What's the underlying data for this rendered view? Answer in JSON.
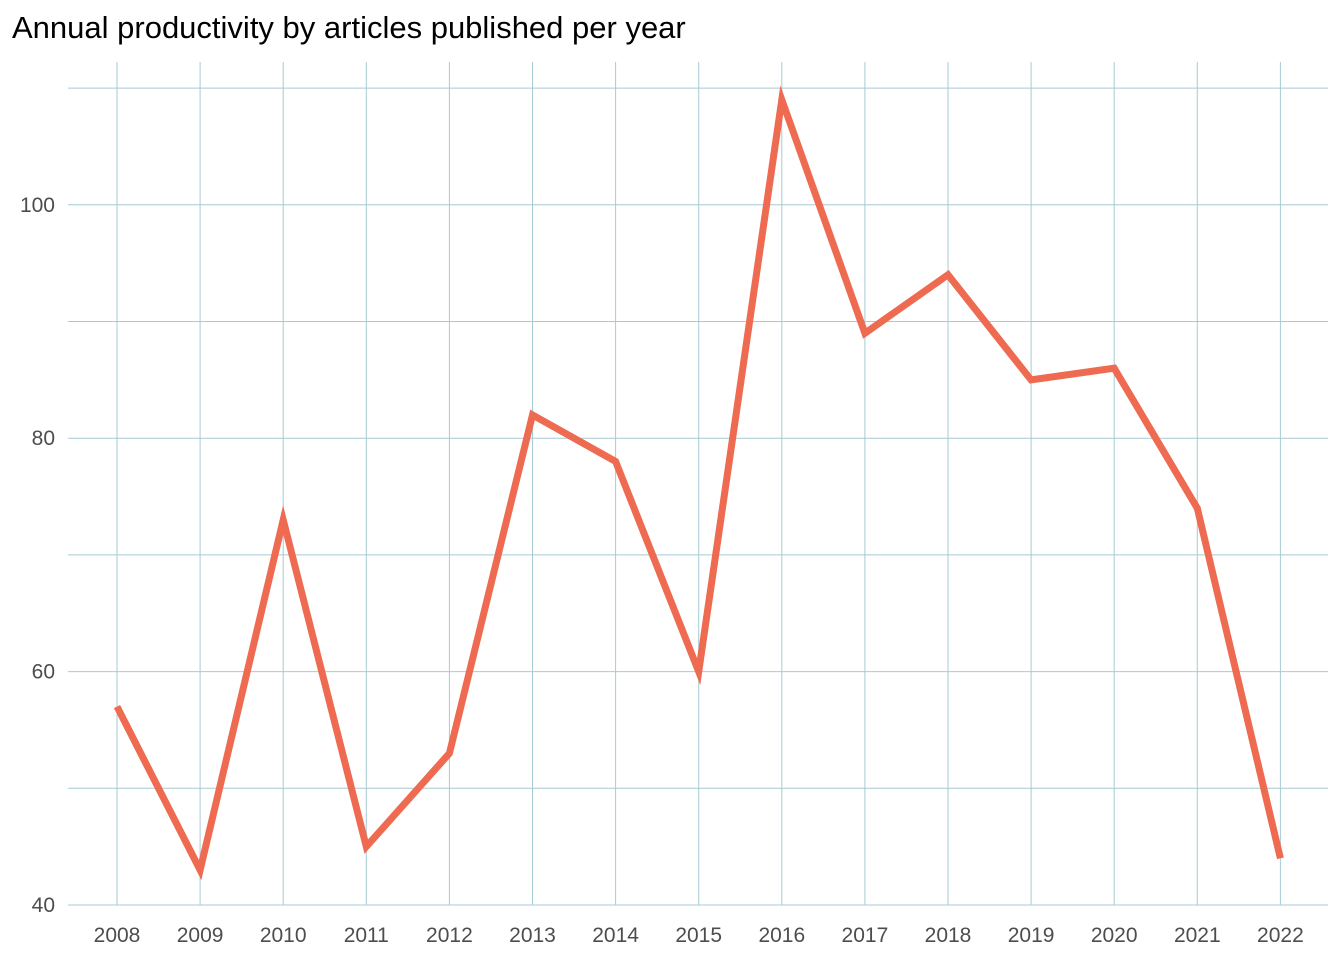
{
  "chart_data": {
    "type": "line",
    "title": "Annual productivity by articles published per year",
    "xlabel": "",
    "ylabel": "",
    "x": [
      "2008",
      "2009",
      "2010",
      "2011",
      "2012",
      "2013",
      "2014",
      "2015",
      "2016",
      "2017",
      "2018",
      "2019",
      "2020",
      "2021",
      "2022"
    ],
    "series": [
      {
        "values": [
          57,
          43,
          73,
          45,
          53,
          82,
          78,
          60,
          109,
          89,
          94,
          85,
          86,
          74,
          44
        ]
      }
    ],
    "y_ticks": [
      "40",
      "60",
      "80",
      "100"
    ],
    "ylim": [
      40,
      110
    ],
    "grid": true,
    "legend": "none",
    "colors": {
      "line": "#EE6A50",
      "grid": "#A6CBD2",
      "tick_text": "#4D4D4D"
    }
  }
}
